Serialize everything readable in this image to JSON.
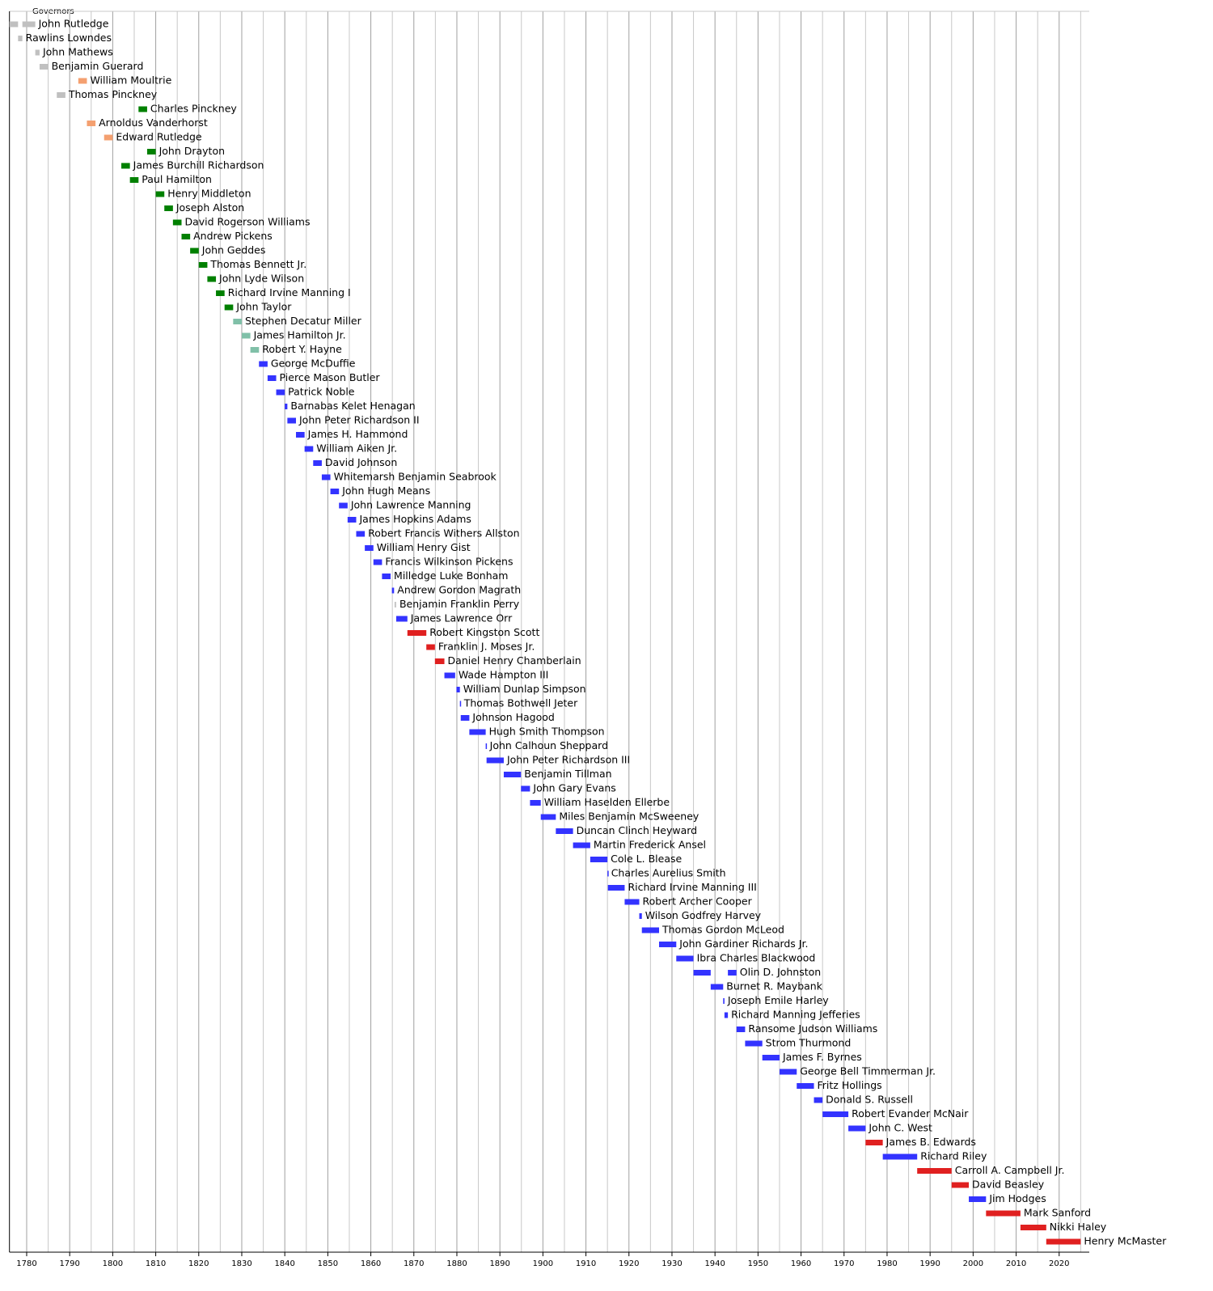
{
  "chart_data": {
    "type": "timeline",
    "title": "Governors",
    "xlim": [
      1776,
      2027
    ],
    "xticks": [
      1780,
      1790,
      1800,
      1810,
      1820,
      1830,
      1840,
      1850,
      1860,
      1870,
      1880,
      1890,
      1900,
      1910,
      1920,
      1930,
      1940,
      1950,
      1960,
      1970,
      1980,
      1990,
      2000,
      2010,
      2020
    ],
    "xminorticks": [
      1785,
      1795,
      1805,
      1815,
      1825,
      1835,
      1845,
      1855,
      1865,
      1875,
      1885,
      1895,
      1905,
      1915,
      1925,
      1935,
      1945,
      1955,
      1965,
      1975,
      1985,
      1995,
      2005,
      2015,
      2025
    ],
    "grid": true,
    "rows": [
      {
        "name": "John Rutledge",
        "color": "#c0c0c0",
        "terms": [
          [
            1776,
            1778
          ],
          [
            1779,
            1782
          ]
        ]
      },
      {
        "name": "Rawlins Lowndes",
        "color": "#c0c0c0",
        "terms": [
          [
            1778,
            1779
          ]
        ]
      },
      {
        "name": "John Mathews",
        "color": "#c0c0c0",
        "terms": [
          [
            1782,
            1783
          ]
        ]
      },
      {
        "name": "Benjamin Guerard",
        "color": "#c0c0c0",
        "terms": [
          [
            1783,
            1785
          ]
        ]
      },
      {
        "name": "William Moultrie",
        "color": "#f4a070",
        "terms": [
          [
            1792,
            1794
          ]
        ]
      },
      {
        "name": "Thomas Pinckney",
        "color": "#c0c0c0",
        "terms": [
          [
            1787,
            1789
          ]
        ]
      },
      {
        "name": "Charles Pinckney",
        "color": "#008000",
        "terms": [
          [
            1806,
            1808
          ]
        ]
      },
      {
        "name": "Arnoldus Vanderhorst",
        "color": "#f4a070",
        "terms": [
          [
            1794,
            1796
          ]
        ]
      },
      {
        "name": "Edward Rutledge",
        "color": "#f4a070",
        "terms": [
          [
            1798,
            1800
          ]
        ]
      },
      {
        "name": "John Drayton",
        "color": "#008000",
        "terms": [
          [
            1808,
            1810
          ]
        ]
      },
      {
        "name": "James Burchill Richardson",
        "color": "#008000",
        "terms": [
          [
            1802,
            1804
          ]
        ]
      },
      {
        "name": "Paul Hamilton",
        "color": "#008000",
        "terms": [
          [
            1804,
            1806
          ]
        ]
      },
      {
        "name": "Henry Middleton",
        "color": "#008000",
        "terms": [
          [
            1810,
            1812
          ]
        ]
      },
      {
        "name": "Joseph Alston",
        "color": "#008000",
        "terms": [
          [
            1812,
            1814
          ]
        ]
      },
      {
        "name": "David Rogerson Williams",
        "color": "#008000",
        "terms": [
          [
            1814,
            1816
          ]
        ]
      },
      {
        "name": "Andrew Pickens",
        "color": "#008000",
        "terms": [
          [
            1816,
            1818
          ]
        ]
      },
      {
        "name": "John Geddes",
        "color": "#008000",
        "terms": [
          [
            1818,
            1820
          ]
        ]
      },
      {
        "name": "Thomas Bennett Jr.",
        "color": "#008000",
        "terms": [
          [
            1820,
            1822
          ]
        ]
      },
      {
        "name": "John Lyde Wilson",
        "color": "#008000",
        "terms": [
          [
            1822,
            1824
          ]
        ]
      },
      {
        "name": "Richard Irvine Manning I",
        "color": "#008000",
        "terms": [
          [
            1824,
            1826
          ]
        ]
      },
      {
        "name": "John Taylor",
        "color": "#008000",
        "terms": [
          [
            1826,
            1828
          ]
        ]
      },
      {
        "name": "Stephen Decatur Miller",
        "color": "#80c0a8",
        "terms": [
          [
            1828,
            1830
          ]
        ]
      },
      {
        "name": "James Hamilton Jr.",
        "color": "#80c0a8",
        "terms": [
          [
            1830,
            1832
          ]
        ]
      },
      {
        "name": "Robert Y. Hayne",
        "color": "#80c0a8",
        "terms": [
          [
            1832,
            1834
          ]
        ]
      },
      {
        "name": "George McDuffie",
        "color": "#3333ff",
        "terms": [
          [
            1834,
            1836
          ]
        ]
      },
      {
        "name": "Pierce Mason Butler",
        "color": "#3333ff",
        "terms": [
          [
            1836,
            1838
          ]
        ]
      },
      {
        "name": "Patrick Noble",
        "color": "#3333ff",
        "terms": [
          [
            1838,
            1840
          ]
        ]
      },
      {
        "name": "Barnabas Kelet Henagan",
        "color": "#3333ff",
        "terms": [
          [
            1840,
            1840.6
          ]
        ]
      },
      {
        "name": "John Peter Richardson II",
        "color": "#3333ff",
        "terms": [
          [
            1840.6,
            1842.6
          ]
        ]
      },
      {
        "name": "James H. Hammond",
        "color": "#3333ff",
        "terms": [
          [
            1842.6,
            1844.6
          ]
        ]
      },
      {
        "name": "William Aiken Jr.",
        "color": "#3333ff",
        "terms": [
          [
            1844.6,
            1846.6
          ]
        ]
      },
      {
        "name": "David Johnson",
        "color": "#3333ff",
        "terms": [
          [
            1846.6,
            1848.6
          ]
        ]
      },
      {
        "name": "Whitemarsh Benjamin Seabrook",
        "color": "#3333ff",
        "terms": [
          [
            1848.6,
            1850.6
          ]
        ]
      },
      {
        "name": "John Hugh Means",
        "color": "#3333ff",
        "terms": [
          [
            1850.6,
            1852.6
          ]
        ]
      },
      {
        "name": "John Lawrence Manning",
        "color": "#3333ff",
        "terms": [
          [
            1852.6,
            1854.6
          ]
        ]
      },
      {
        "name": "James Hopkins Adams",
        "color": "#3333ff",
        "terms": [
          [
            1854.6,
            1856.6
          ]
        ]
      },
      {
        "name": "Robert Francis Withers Allston",
        "color": "#3333ff",
        "terms": [
          [
            1856.6,
            1858.6
          ]
        ]
      },
      {
        "name": "William Henry Gist",
        "color": "#3333ff",
        "terms": [
          [
            1858.6,
            1860.6
          ]
        ]
      },
      {
        "name": "Francis Wilkinson Pickens",
        "color": "#3333ff",
        "terms": [
          [
            1860.6,
            1862.6
          ]
        ]
      },
      {
        "name": "Milledge Luke Bonham",
        "color": "#3333ff",
        "terms": [
          [
            1862.6,
            1864.6
          ]
        ]
      },
      {
        "name": "Andrew Gordon Magrath",
        "color": "#3333ff",
        "terms": [
          [
            1864.9,
            1865.4
          ]
        ]
      },
      {
        "name": "Benjamin Franklin Perry",
        "color": "#c8c8c8",
        "terms": [
          [
            1865.5,
            1865.9
          ]
        ]
      },
      {
        "name": "James Lawrence Orr",
        "color": "#3333ff",
        "terms": [
          [
            1865.9,
            1868.5
          ]
        ]
      },
      {
        "name": "Robert Kingston Scott",
        "color": "#e02020",
        "terms": [
          [
            1868.5,
            1872.9
          ]
        ]
      },
      {
        "name": "Franklin J. Moses Jr.",
        "color": "#e02020",
        "terms": [
          [
            1872.9,
            1874.9
          ]
        ]
      },
      {
        "name": "Daniel Henry Chamberlain",
        "color": "#e02020",
        "terms": [
          [
            1874.9,
            1877.1
          ]
        ]
      },
      {
        "name": "Wade Hampton III",
        "color": "#3333ff",
        "terms": [
          [
            1877.1,
            1879.6
          ]
        ]
      },
      {
        "name": "William Dunlap Simpson",
        "color": "#3333ff",
        "terms": [
          [
            1879.9,
            1880.7
          ]
        ]
      },
      {
        "name": "Thomas Bothwell Jeter",
        "color": "#3333ff",
        "terms": [
          [
            1880.7,
            1880.9
          ]
        ]
      },
      {
        "name": "Johnson Hagood",
        "color": "#3333ff",
        "terms": [
          [
            1880.9,
            1882.9
          ]
        ]
      },
      {
        "name": "Hugh Smith Thompson",
        "color": "#3333ff",
        "terms": [
          [
            1882.9,
            1886.7
          ]
        ]
      },
      {
        "name": "John Calhoun Sheppard",
        "color": "#3333ff",
        "terms": [
          [
            1886.7,
            1886.9
          ]
        ]
      },
      {
        "name": "John Peter Richardson III",
        "color": "#3333ff",
        "terms": [
          [
            1886.9,
            1890.9
          ]
        ]
      },
      {
        "name": "Benjamin Tillman",
        "color": "#3333ff",
        "terms": [
          [
            1890.9,
            1894.9
          ]
        ]
      },
      {
        "name": "John Gary Evans",
        "color": "#3333ff",
        "terms": [
          [
            1894.9,
            1897
          ]
        ]
      },
      {
        "name": "William Haselden Ellerbe",
        "color": "#3333ff",
        "terms": [
          [
            1897,
            1899.5
          ]
        ]
      },
      {
        "name": "Miles Benjamin McSweeney",
        "color": "#3333ff",
        "terms": [
          [
            1899.5,
            1903
          ]
        ]
      },
      {
        "name": "Duncan Clinch Heyward",
        "color": "#3333ff",
        "terms": [
          [
            1903,
            1907
          ]
        ]
      },
      {
        "name": "Martin Frederick Ansel",
        "color": "#3333ff",
        "terms": [
          [
            1907,
            1911
          ]
        ]
      },
      {
        "name": "Cole L. Blease",
        "color": "#3333ff",
        "terms": [
          [
            1911,
            1915
          ]
        ]
      },
      {
        "name": "Charles Aurelius Smith",
        "color": "#3333ff",
        "terms": [
          [
            1915,
            1915.1
          ]
        ]
      },
      {
        "name": "Richard Irvine Manning III",
        "color": "#3333ff",
        "terms": [
          [
            1915.1,
            1919
          ]
        ]
      },
      {
        "name": "Robert Archer Cooper",
        "color": "#3333ff",
        "terms": [
          [
            1919,
            1922.4
          ]
        ]
      },
      {
        "name": "Wilson Godfrey Harvey",
        "color": "#3333ff",
        "terms": [
          [
            1922.4,
            1923
          ]
        ]
      },
      {
        "name": "Thomas Gordon McLeod",
        "color": "#3333ff",
        "terms": [
          [
            1923,
            1927
          ]
        ]
      },
      {
        "name": "John Gardiner Richards Jr.",
        "color": "#3333ff",
        "terms": [
          [
            1927,
            1931
          ]
        ]
      },
      {
        "name": "Ibra Charles Blackwood",
        "color": "#3333ff",
        "terms": [
          [
            1931,
            1935
          ]
        ]
      },
      {
        "name": "Olin D. Johnston",
        "color": "#3333ff",
        "terms": [
          [
            1935,
            1939
          ],
          [
            1943,
            1945
          ]
        ]
      },
      {
        "name": "Burnet R. Maybank",
        "color": "#3333ff",
        "terms": [
          [
            1939,
            1941.9
          ]
        ]
      },
      {
        "name": "Joseph Emile Harley",
        "color": "#3333ff",
        "terms": [
          [
            1941.9,
            1942.2
          ]
        ]
      },
      {
        "name": "Richard Manning Jefferies",
        "color": "#3333ff",
        "terms": [
          [
            1942.2,
            1943
          ]
        ]
      },
      {
        "name": "Ransome Judson Williams",
        "color": "#3333ff",
        "terms": [
          [
            1945,
            1947
          ]
        ]
      },
      {
        "name": "Strom Thurmond",
        "color": "#3333ff",
        "terms": [
          [
            1947,
            1951
          ]
        ]
      },
      {
        "name": "James F. Byrnes",
        "color": "#3333ff",
        "terms": [
          [
            1951,
            1955
          ]
        ]
      },
      {
        "name": "George Bell Timmerman Jr.",
        "color": "#3333ff",
        "terms": [
          [
            1955,
            1959
          ]
        ]
      },
      {
        "name": "Fritz Hollings",
        "color": "#3333ff",
        "terms": [
          [
            1959,
            1963
          ]
        ]
      },
      {
        "name": "Donald S. Russell",
        "color": "#3333ff",
        "terms": [
          [
            1963,
            1965
          ]
        ]
      },
      {
        "name": "Robert Evander McNair",
        "color": "#3333ff",
        "terms": [
          [
            1965,
            1971
          ]
        ]
      },
      {
        "name": "John C. West",
        "color": "#3333ff",
        "terms": [
          [
            1971,
            1975
          ]
        ]
      },
      {
        "name": "James B. Edwards",
        "color": "#e02020",
        "terms": [
          [
            1975,
            1979
          ]
        ]
      },
      {
        "name": "Richard Riley",
        "color": "#3333ff",
        "terms": [
          [
            1979,
            1987
          ]
        ]
      },
      {
        "name": "Carroll A. Campbell Jr.",
        "color": "#e02020",
        "terms": [
          [
            1987,
            1995
          ]
        ]
      },
      {
        "name": "David Beasley",
        "color": "#e02020",
        "terms": [
          [
            1995,
            1999
          ]
        ]
      },
      {
        "name": "Jim Hodges",
        "color": "#3333ff",
        "terms": [
          [
            1999,
            2003
          ]
        ]
      },
      {
        "name": "Mark Sanford",
        "color": "#e02020",
        "terms": [
          [
            2003,
            2011
          ]
        ]
      },
      {
        "name": "Nikki Haley",
        "color": "#e02020",
        "terms": [
          [
            2011,
            2017
          ]
        ]
      },
      {
        "name": "Henry McMaster",
        "color": "#e02020",
        "terms": [
          [
            2017,
            2025
          ]
        ]
      }
    ]
  }
}
